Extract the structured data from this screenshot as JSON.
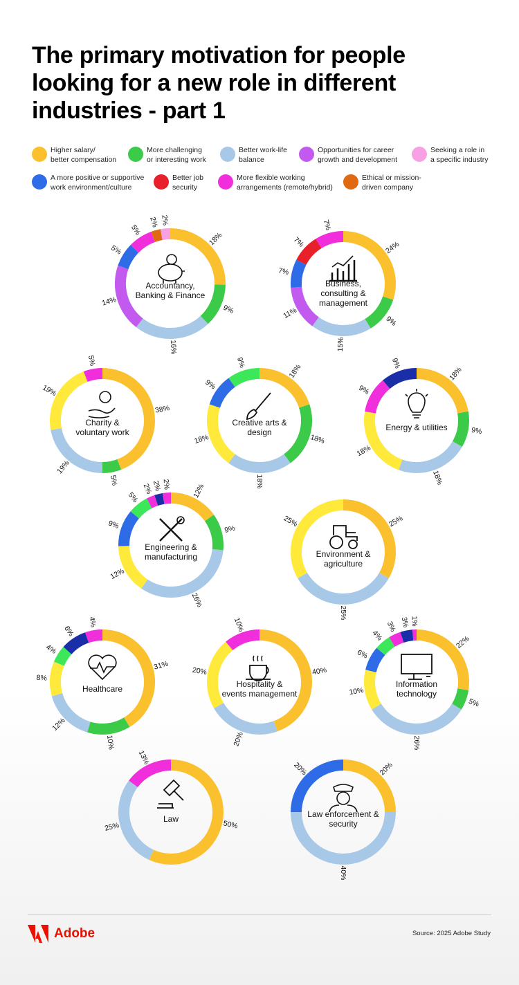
{
  "title": "The primary motivation for people looking for a new role in different industries - part 1",
  "legend": [
    {
      "label": "Higher salary/\nbetter compensation",
      "color": "#FBC02D"
    },
    {
      "label": "More challenging\nor interesting work",
      "color": "#3CCB48"
    },
    {
      "label": "Better work-life\nbalance",
      "color": "#A8C8E8"
    },
    {
      "label": "Opportunities for career\ngrowth and development",
      "color": "#C25AF0"
    },
    {
      "label": "Seeking a role in\na specific industry",
      "color": "#F7A1E4"
    },
    {
      "label": "A more positive or supportive\nwork environment/culture",
      "color": "#2E6BE6"
    },
    {
      "label": "Better job\nsecurity",
      "color": "#E8202A"
    },
    {
      "label": "More flexible working\narrangements (remote/hybrid)",
      "color": "#F02EDC"
    },
    {
      "label": "Ethical or mission-\ndriven company",
      "color": "#E06A12"
    }
  ],
  "chart_data": [
    {
      "type": "pie",
      "title": "Accountancy, Banking & Finance",
      "icon": "piggy-bank-icon",
      "slices": [
        {
          "value": 18,
          "label": "18%",
          "color": "#FBC02D"
        },
        {
          "value": 9,
          "label": "9%",
          "color": "#3CCB48"
        },
        {
          "value": 16,
          "label": "16%",
          "color": "#A8C8E8"
        },
        {
          "value": 14,
          "label": "14%",
          "color": "#C25AF0"
        },
        {
          "value": 5,
          "label": "5%",
          "color": "#2E6BE6"
        },
        {
          "value": 5,
          "label": "5%",
          "color": "#F02EDC"
        },
        {
          "value": 2,
          "label": "2%",
          "color": "#E06A12"
        },
        {
          "value": 2,
          "label": "2%",
          "color": "#F7A1E4"
        }
      ]
    },
    {
      "type": "pie",
      "title": "Business, consulting & management",
      "icon": "bar-chart-icon",
      "slices": [
        {
          "value": 24,
          "label": "24%",
          "color": "#FBC02D"
        },
        {
          "value": 9,
          "label": "9%",
          "color": "#3CCB48"
        },
        {
          "value": 15,
          "label": "15%",
          "color": "#A8C8E8"
        },
        {
          "value": 11,
          "label": "11%",
          "color": "#C25AF0"
        },
        {
          "value": 7,
          "label": "7%",
          "color": "#2E6BE6"
        },
        {
          "value": 7,
          "label": "7%",
          "color": "#E8202A"
        },
        {
          "value": 7,
          "label": "7%",
          "color": "#F02EDC"
        }
      ]
    },
    {
      "type": "pie",
      "title": "Charity & voluntary work",
      "icon": "hand-coin-icon",
      "slices": [
        {
          "value": 38,
          "label": "38%",
          "color": "#FBC02D"
        },
        {
          "value": 5,
          "label": "5%",
          "color": "#3CCB48"
        },
        {
          "value": 19,
          "label": "19%",
          "color": "#A8C8E8"
        },
        {
          "value": 19,
          "label": "19%",
          "color": "#FFE93B"
        },
        {
          "value": 5,
          "label": "5%",
          "color": "#F02EDC"
        }
      ]
    },
    {
      "type": "pie",
      "title": "Creative arts & design",
      "icon": "paintbrush-icon",
      "slices": [
        {
          "value": 18,
          "label": "18%",
          "color": "#FBC02D"
        },
        {
          "value": 18,
          "label": "18%",
          "color": "#3CCB48"
        },
        {
          "value": 18,
          "label": "18%",
          "color": "#A8C8E8"
        },
        {
          "value": 18,
          "label": "18%",
          "color": "#FFE93B"
        },
        {
          "value": 9,
          "label": "9%",
          "color": "#2E6BE6"
        },
        {
          "value": 9,
          "label": "9%",
          "color": "#3CE85A"
        }
      ]
    },
    {
      "type": "pie",
      "title": "Energy & utilities",
      "icon": "lightbulb-icon",
      "slices": [
        {
          "value": 18,
          "label": "18%",
          "color": "#FBC02D"
        },
        {
          "value": 9,
          "label": "9%",
          "color": "#3CCB48"
        },
        {
          "value": 18,
          "label": "18%",
          "color": "#A8C8E8"
        },
        {
          "value": 18,
          "label": "18%",
          "color": "#FFE93B"
        },
        {
          "value": 9,
          "label": "9%",
          "color": "#F02EDC"
        },
        {
          "value": 9,
          "label": "9%",
          "color": "#1A2EA8"
        }
      ]
    },
    {
      "type": "pie",
      "title": "Engineering & manufacturing",
      "icon": "wrench-screwdriver-icon",
      "slices": [
        {
          "value": 12,
          "label": "12%",
          "color": "#FBC02D"
        },
        {
          "value": 9,
          "label": "9%",
          "color": "#3CCB48"
        },
        {
          "value": 26,
          "label": "26%",
          "color": "#A8C8E8"
        },
        {
          "value": 12,
          "label": "12%",
          "color": "#FFE93B"
        },
        {
          "value": 9,
          "label": "9%",
          "color": "#2E6BE6"
        },
        {
          "value": 5,
          "label": "5%",
          "color": "#3CE85A"
        },
        {
          "value": 2,
          "label": "2%",
          "color": "#F02EDC"
        },
        {
          "value": 2,
          "label": "2%",
          "color": "#1A2EA8"
        },
        {
          "value": 2,
          "label": "2%",
          "color": "#F02EDC"
        }
      ]
    },
    {
      "type": "pie",
      "title": "Environment & agriculture",
      "icon": "tractor-icon",
      "slices": [
        {
          "value": 25,
          "label": "25%",
          "color": "#FBC02D"
        },
        {
          "value": 25,
          "label": "25%",
          "color": "#A8C8E8"
        },
        {
          "value": 25,
          "label": "25%",
          "color": "#FFE93B"
        }
      ]
    },
    {
      "type": "pie",
      "title": "Healthcare",
      "icon": "heart-pulse-icon",
      "slices": [
        {
          "value": 31,
          "label": "31%",
          "color": "#FBC02D"
        },
        {
          "value": 10,
          "label": "10%",
          "color": "#3CCB48"
        },
        {
          "value": 12,
          "label": "12%",
          "color": "#A8C8E8"
        },
        {
          "value": 8,
          "label": "8%",
          "color": "#FFE93B"
        },
        {
          "value": 4,
          "label": "4%",
          "color": "#3CE85A"
        },
        {
          "value": 6,
          "label": "6%",
          "color": "#1A2EA8"
        },
        {
          "value": 4,
          "label": "4%",
          "color": "#F02EDC"
        }
      ]
    },
    {
      "type": "pie",
      "title": "Hospitality & events management",
      "icon": "coffee-cup-icon",
      "slices": [
        {
          "value": 40,
          "label": "40%",
          "color": "#FBC02D"
        },
        {
          "value": 20,
          "label": "20%",
          "color": "#A8C8E8"
        },
        {
          "value": 20,
          "label": "20%",
          "color": "#FFE93B"
        },
        {
          "value": 10,
          "label": "10%",
          "color": "#F02EDC"
        }
      ]
    },
    {
      "type": "pie",
      "title": "Information technology",
      "icon": "computer-icon",
      "slices": [
        {
          "value": 22,
          "label": "22%",
          "color": "#FBC02D"
        },
        {
          "value": 5,
          "label": "5%",
          "color": "#3CCB48"
        },
        {
          "value": 26,
          "label": "26%",
          "color": "#A8C8E8"
        },
        {
          "value": 10,
          "label": "10%",
          "color": "#FFE93B"
        },
        {
          "value": 6,
          "label": "6%",
          "color": "#2E6BE6"
        },
        {
          "value": 4,
          "label": "4%",
          "color": "#3CE85A"
        },
        {
          "value": 3,
          "label": "3%",
          "color": "#F02EDC"
        },
        {
          "value": 3,
          "label": "3%",
          "color": "#1A2EA8"
        },
        {
          "value": 1,
          "label": "1%",
          "color": "#F02EDC"
        }
      ]
    },
    {
      "type": "pie",
      "title": "Law",
      "icon": "gavel-icon",
      "slices": [
        {
          "value": 50,
          "label": "50%",
          "color": "#FBC02D"
        },
        {
          "value": 25,
          "label": "25%",
          "color": "#A8C8E8"
        },
        {
          "value": 13,
          "label": "13%",
          "color": "#F02EDC"
        }
      ]
    },
    {
      "type": "pie",
      "title": "Law enforcement & security",
      "icon": "police-officer-icon",
      "slices": [
        {
          "value": 20,
          "label": "20%",
          "color": "#FBC02D"
        },
        {
          "value": 40,
          "label": "40%",
          "color": "#A8C8E8"
        },
        {
          "value": 20,
          "label": "20%",
          "color": "#2E6BE6"
        }
      ]
    }
  ],
  "footer": {
    "brand": "Adobe",
    "source": "Source: 2025 Adobe Study",
    "brand_color": "#EB1000"
  }
}
